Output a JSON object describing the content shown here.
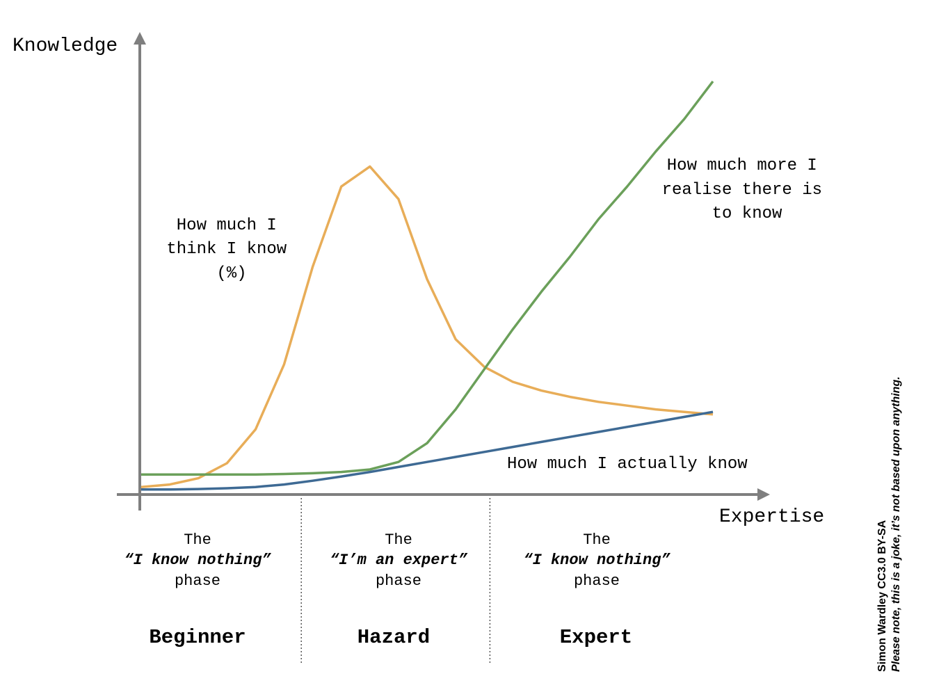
{
  "chart_data": {
    "type": "line",
    "xlabel": "Expertise",
    "ylabel": "Knowledge",
    "grid": false,
    "legend": "none",
    "xlim": [
      0,
      20
    ],
    "ylim": [
      0,
      15
    ],
    "series": [
      {
        "name": "How much I think I know (%)",
        "label_lines": [
          "How much I",
          "think I know",
          "(%)"
        ],
        "color": "#e8ad58",
        "x": [
          0,
          1,
          2,
          3,
          4,
          5,
          6,
          7,
          8,
          9,
          10,
          11,
          12,
          13,
          14,
          15,
          16,
          17,
          18,
          19,
          20
        ],
        "y": [
          0.3,
          0.4,
          0.65,
          1.25,
          2.6,
          5.2,
          9.1,
          12.3,
          13.1,
          11.8,
          8.6,
          6.2,
          5.1,
          4.5,
          4.15,
          3.9,
          3.7,
          3.55,
          3.4,
          3.3,
          3.2
        ]
      },
      {
        "name": "How much more I realise there is to know",
        "label_lines": [
          "How much more I",
          "realise there is",
          "to know"
        ],
        "color": "#6ba05a",
        "x": [
          0,
          1,
          2,
          3,
          4,
          5,
          6,
          7,
          8,
          9,
          10,
          11,
          12,
          13,
          14,
          15,
          16,
          17,
          18,
          19,
          20
        ],
        "y": [
          0.8,
          0.8,
          0.8,
          0.8,
          0.8,
          0.82,
          0.85,
          0.9,
          1.0,
          1.3,
          2.05,
          3.4,
          5.0,
          6.6,
          8.1,
          9.5,
          11.0,
          12.3,
          13.7,
          15.0,
          16.5
        ]
      },
      {
        "name": "How much I actually know",
        "label_lines": [
          "How much I actually know"
        ],
        "color": "#3e6a94",
        "x": [
          0,
          1,
          2,
          3,
          4,
          5,
          6,
          7,
          8,
          9,
          10,
          11,
          12,
          13,
          14,
          15,
          16,
          17,
          18,
          19,
          20
        ],
        "y": [
          0.2,
          0.2,
          0.22,
          0.25,
          0.3,
          0.4,
          0.55,
          0.72,
          0.9,
          1.1,
          1.3,
          1.5,
          1.7,
          1.9,
          2.1,
          2.3,
          2.5,
          2.7,
          2.9,
          3.1,
          3.3
        ]
      }
    ],
    "dividers_x": [
      5.6,
      12.2
    ],
    "phases": [
      {
        "the": "The",
        "quote": "“I know nothing”",
        "phase": "phase",
        "name": "Beginner"
      },
      {
        "the": "The",
        "quote": "“I’m an expert”",
        "phase": "phase",
        "name": "Hazard"
      },
      {
        "the": "The",
        "quote": "“I know nothing”",
        "phase": "phase",
        "name": "Expert"
      }
    ]
  },
  "credit": {
    "author": "Simon Wardley CC3.0 BY-SA",
    "note": "Please note, this is a joke, it’s not based upon anything."
  },
  "colors": {
    "axis": "#7f7f7f",
    "divider": "#555555"
  }
}
